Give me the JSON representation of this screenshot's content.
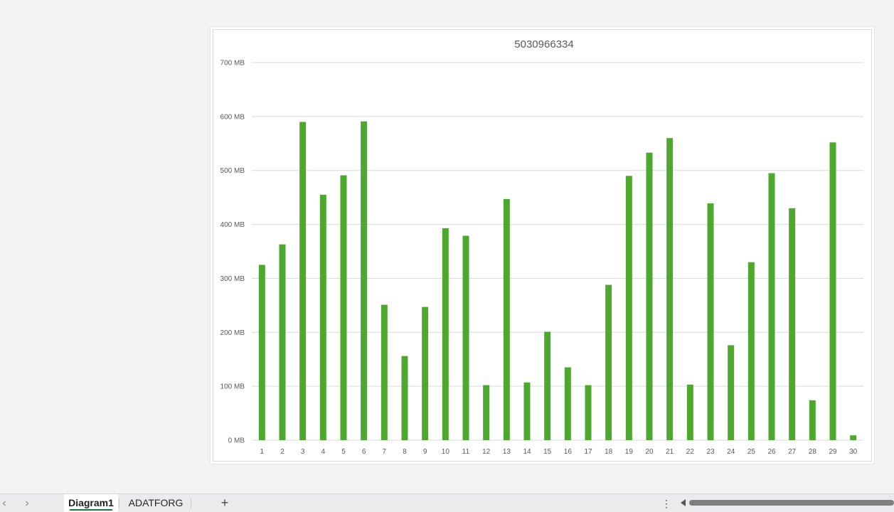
{
  "sheet_tabs": {
    "active": "Diagram1",
    "tabs": [
      {
        "label": "Diagram1"
      },
      {
        "label": "ADATFORG"
      }
    ],
    "add_label": "+",
    "nav_prev": "‹",
    "nav_next": "›",
    "more_label": "⋮"
  },
  "colors": {
    "bar": "#4ea72e",
    "gridline": "#d9d9d9",
    "axis_text": "#595959",
    "title_text": "#595959",
    "active_tab_accent": "#217346"
  },
  "chart_data": {
    "type": "bar",
    "title": "5030966334",
    "xlabel": "",
    "ylabel": "",
    "ylim": [
      0,
      700
    ],
    "y_ticks": [
      0,
      100,
      200,
      300,
      400,
      500,
      600,
      700
    ],
    "y_tick_labels": [
      "0 MB",
      "100 MB",
      "200 MB",
      "300 MB",
      "400 MB",
      "500 MB",
      "600 MB",
      "700 MB"
    ],
    "grid": true,
    "legend": "none",
    "categories": [
      "1",
      "2",
      "3",
      "4",
      "5",
      "6",
      "7",
      "8",
      "9",
      "10",
      "11",
      "12",
      "13",
      "14",
      "15",
      "16",
      "17",
      "18",
      "19",
      "20",
      "21",
      "22",
      "23",
      "24",
      "25",
      "26",
      "27",
      "28",
      "29",
      "30"
    ],
    "values": [
      325,
      363,
      590,
      455,
      491,
      591,
      251,
      156,
      247,
      393,
      379,
      102,
      447,
      107,
      201,
      135,
      102,
      288,
      490,
      533,
      560,
      103,
      439,
      176,
      330,
      495,
      430,
      74,
      552,
      9
    ]
  }
}
